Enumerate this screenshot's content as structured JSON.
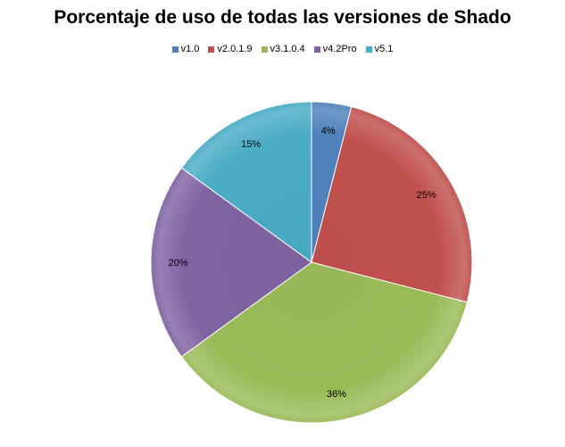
{
  "chart_data": {
    "type": "pie",
    "title": "Porcentaje de uso de todas las versiones de Shado",
    "categories": [
      "v1.0",
      "v2.0.1.9",
      "v3.1.0.4",
      "v4.2Pro",
      "v5.1"
    ],
    "values": [
      4,
      25,
      36,
      20,
      15
    ],
    "labels": [
      "4%",
      "25%",
      "36%",
      "20%",
      "15%"
    ],
    "colors": [
      "#4F81BD",
      "#C0504D",
      "#9BBB59",
      "#8064A2",
      "#4BACC6"
    ],
    "legend_position": "top"
  }
}
